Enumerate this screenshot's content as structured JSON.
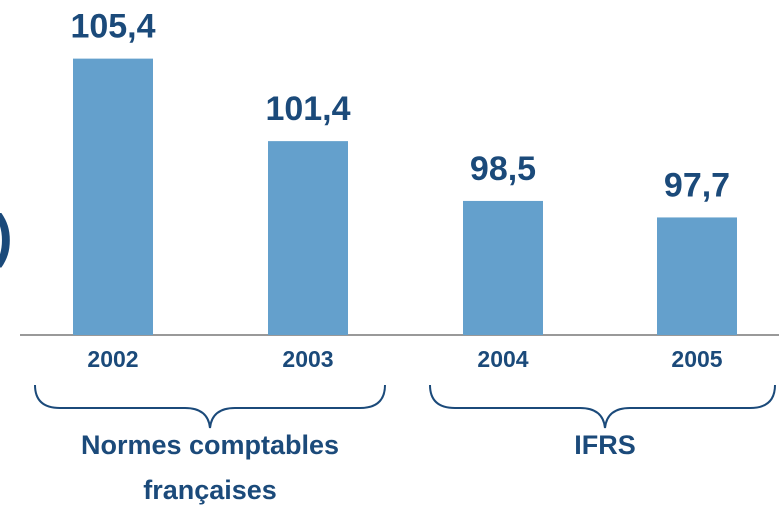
{
  "chart_data": {
    "type": "bar",
    "categories": [
      "2002",
      "2003",
      "2004",
      "2005"
    ],
    "values": [
      105.4,
      101.4,
      98.5,
      97.7
    ],
    "value_labels": [
      "105,4",
      "101,4",
      "98,5",
      "97,7"
    ],
    "color": "#64a0cc",
    "ylim": [
      92,
      108
    ],
    "groups": [
      {
        "lines": [
          "Normes comptables",
          "françaises"
        ]
      },
      {
        "lines": [
          "IFRS"
        ]
      }
    ],
    "annotation": ")"
  }
}
